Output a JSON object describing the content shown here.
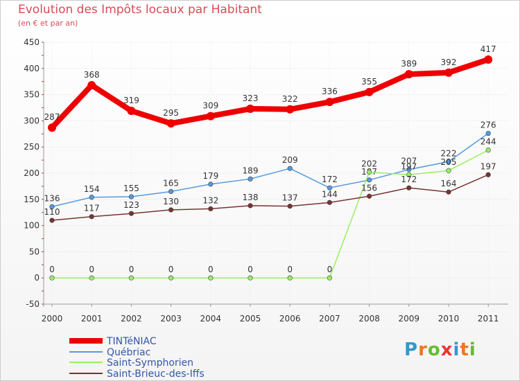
{
  "chart_data": {
    "type": "line",
    "title": "Evolution des Impôts locaux par Habitant",
    "subtitle": "(en € et par an)",
    "categories": [
      "2000",
      "2001",
      "2002",
      "2003",
      "2004",
      "2005",
      "2006",
      "2007",
      "2008",
      "2009",
      "2010",
      "2011"
    ],
    "ylim": [
      -50,
      450
    ],
    "yticks": [
      -50,
      0,
      50,
      100,
      150,
      200,
      250,
      300,
      350,
      400,
      450
    ],
    "grid": true,
    "legend_position": "bottom-left",
    "series": [
      {
        "name": "TINTéNIAC",
        "color": "#ee0000",
        "emphasis": true,
        "values": [
          287,
          368,
          319,
          295,
          309,
          323,
          322,
          336,
          355,
          389,
          392,
          417
        ]
      },
      {
        "name": "Québriac",
        "color": "#5599dd",
        "values": [
          136,
          154,
          155,
          165,
          179,
          189,
          209,
          172,
          187,
          207,
          222,
          276
        ]
      },
      {
        "name": "Saint-Symphorien",
        "color": "#99ee66",
        "values": [
          0,
          0,
          0,
          0,
          0,
          0,
          0,
          0,
          202,
          197,
          205,
          244
        ]
      },
      {
        "name": "Saint-Brieuc-des-Iffs",
        "color": "#773333",
        "values": [
          110,
          117,
          123,
          130,
          132,
          138,
          137,
          144,
          156,
          172,
          164,
          197
        ]
      }
    ]
  },
  "brand": {
    "logo_letters": [
      "P",
      "r",
      "o",
      "x",
      "i",
      "t",
      "i"
    ],
    "logo_colors": [
      "#3399cc",
      "#ee7722",
      "#66bb33",
      "#ee3333",
      "#3399cc",
      "#ee7722",
      "#66bb33"
    ]
  }
}
